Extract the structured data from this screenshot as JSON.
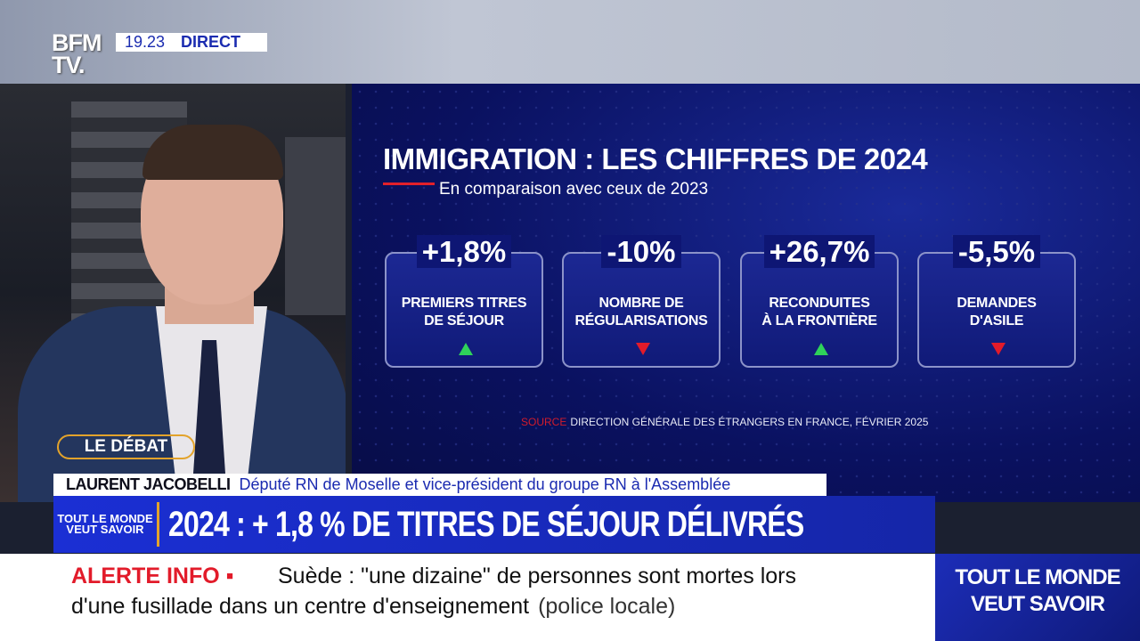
{
  "channel": {
    "logo": "BFM TV.",
    "time": "19.23",
    "live": "DIRECT"
  },
  "show_tag": "LE DÉBAT",
  "graphic": {
    "title": "IMMIGRATION : LES CHIFFRES DE 2024",
    "subtitle": "En comparaison avec ceux de 2023",
    "cards": [
      {
        "value": "+1,8%",
        "label": "PREMIERS TITRES\nDE SÉJOUR",
        "trend": "up"
      },
      {
        "value": "-10%",
        "label": "NOMBRE DE\nRÉGULARISATIONS",
        "trend": "down"
      },
      {
        "value": "+26,7%",
        "label": "RECONDUITES\nÀ LA FRONTIÈRE",
        "trend": "up"
      },
      {
        "value": "-5,5%",
        "label": "DEMANDES\nD'ASILE",
        "trend": "down"
      }
    ],
    "source_label": "SOURCE",
    "source": "DIRECTION GÉNÉRALE DES ÉTRANGERS EN FRANCE, FÉVRIER 2025"
  },
  "lower_third": {
    "name": "LAURENT JACOBELLI",
    "role": "Député RN de Moselle et vice-président du groupe RN à l'Assemblée",
    "program": "TOUT LE MONDE VEUT SAVOIR",
    "headline": "2024 : + 1,8 % DE TITRES DE SÉJOUR DÉLIVRÉS"
  },
  "ticker": {
    "label": "ALERTE INFO ▪",
    "line1": "Suède : \"une dizaine\" de personnes sont mortes lors",
    "line2": "d'une fusillade dans un centre d'enseignement",
    "source": "(police locale)"
  },
  "side_box": "TOUT LE MONDE VEUT SAVOIR",
  "colors": {
    "up": "#2fd35a",
    "down": "#e21b2a",
    "accent": "#e3a32b",
    "brand_blue": "#1b2fd4"
  }
}
